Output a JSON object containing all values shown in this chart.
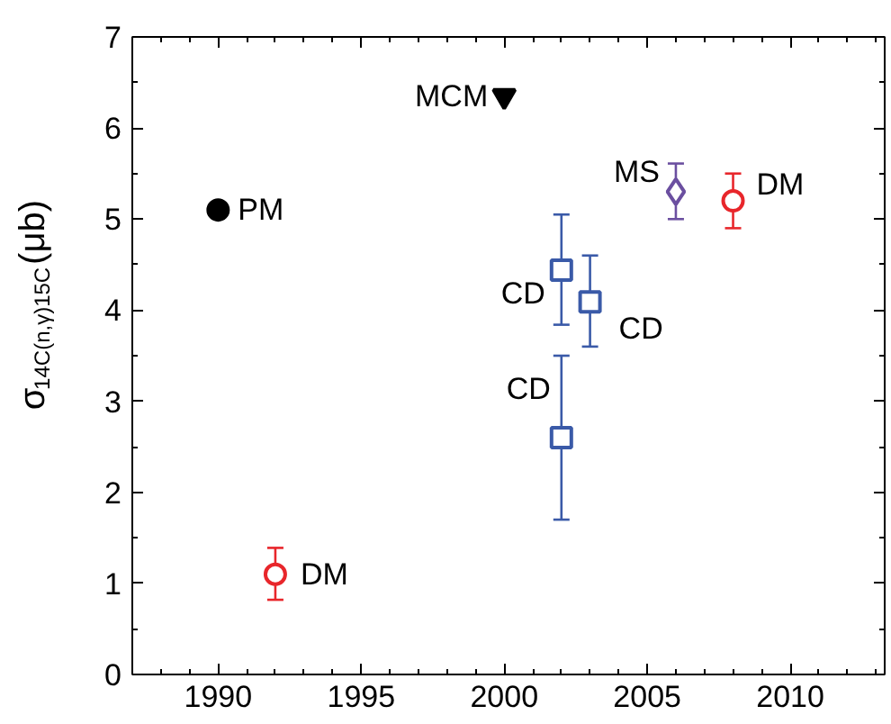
{
  "chart_data": {
    "type": "scatter",
    "ylabel": "σ$_{14C(n,γ)15C}$(μb)",
    "xlim": [
      1987,
      2013.3
    ],
    "ylim": [
      0,
      7
    ],
    "xticks": [
      1990,
      1995,
      2000,
      2005,
      2010
    ],
    "yticks": [
      0,
      1,
      2,
      3,
      4,
      5,
      6,
      7
    ],
    "grid": false,
    "series": [
      {
        "name": "PM",
        "color": "#000000",
        "marker": "circle",
        "x": [
          1990
        ],
        "values": [
          5.1
        ]
      },
      {
        "name": "DM",
        "color": "#e8262b",
        "marker": "circle",
        "x": [
          1992,
          2008
        ],
        "values": [
          1.1,
          5.2
        ],
        "errors": [
          [
            0.82,
            1.39
          ],
          [
            4.9,
            5.5
          ]
        ]
      },
      {
        "name": "MCM",
        "color": "#000000",
        "marker": "triangle",
        "x": [
          2000
        ],
        "values": [
          6.35
        ]
      },
      {
        "name": "CD",
        "color": "#3a5aa8",
        "marker": "square",
        "x": [
          2002,
          2003,
          2002
        ],
        "values": [
          4.44,
          4.09,
          2.6
        ],
        "errors": [
          [
            3.84,
            5.05
          ],
          [
            3.6,
            4.6
          ],
          [
            1.7,
            3.5
          ]
        ]
      },
      {
        "name": "MS",
        "color": "#6b4fa0",
        "marker": "diamond",
        "x": [
          2006
        ],
        "values": [
          5.3
        ],
        "errors": [
          [
            5.0,
            5.61
          ]
        ]
      }
    ]
  }
}
